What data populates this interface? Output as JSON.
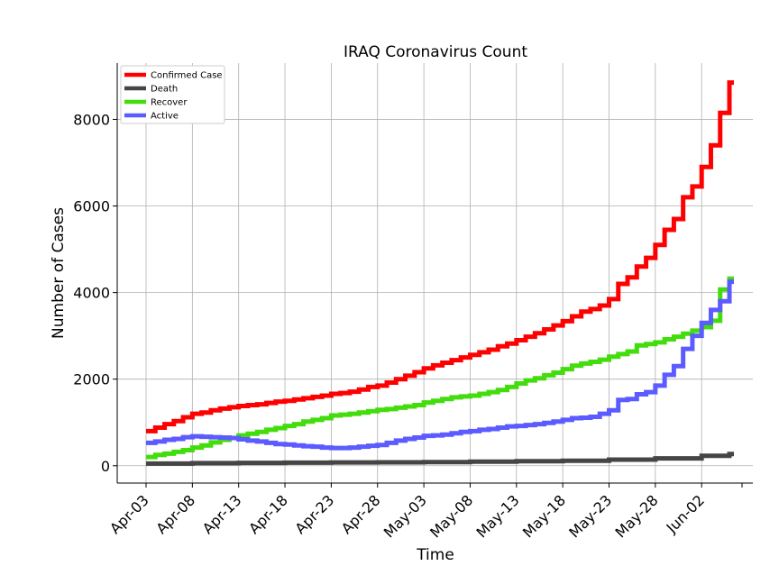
{
  "chart_data": {
    "type": "line",
    "title": "IRAQ Coronavirus Count",
    "xlabel": "Time",
    "ylabel": "Number of Cases",
    "ylim": [
      -400,
      9300
    ],
    "x_ticks": [
      "Apr-03",
      "Apr-08",
      "Apr-13",
      "Apr-18",
      "Apr-23",
      "Apr-28",
      "May-03",
      "May-08",
      "May-13",
      "May-18",
      "May-23",
      "May-28",
      "Jun-02"
    ],
    "y_ticks": [
      0,
      2000,
      4000,
      6000,
      8000
    ],
    "grid": true,
    "legend_position": "top-left",
    "series": [
      {
        "name": "Confirmed Case",
        "color": "#ff0000",
        "x": [
          "Apr-03",
          "Apr-04",
          "Apr-05",
          "Apr-06",
          "Apr-07",
          "Apr-08",
          "Apr-09",
          "Apr-10",
          "Apr-11",
          "Apr-12",
          "Apr-13",
          "Apr-14",
          "Apr-15",
          "Apr-16",
          "Apr-17",
          "Apr-18",
          "Apr-19",
          "Apr-20",
          "Apr-21",
          "Apr-22",
          "Apr-23",
          "Apr-24",
          "Apr-25",
          "Apr-26",
          "Apr-27",
          "Apr-28",
          "Apr-29",
          "Apr-30",
          "May-01",
          "May-02",
          "May-03",
          "May-04",
          "May-05",
          "May-06",
          "May-07",
          "May-08",
          "May-09",
          "May-10",
          "May-11",
          "May-12",
          "May-13",
          "May-14",
          "May-15",
          "May-16",
          "May-17",
          "May-18",
          "May-19",
          "May-20",
          "May-21",
          "May-22",
          "May-23",
          "May-24",
          "May-25",
          "May-26",
          "May-27",
          "May-28",
          "May-29",
          "May-30",
          "May-31",
          "Jun-01",
          "Jun-02",
          "Jun-03",
          "Jun-04",
          "Jun-05"
        ],
        "values": [
          800,
          880,
          960,
          1030,
          1120,
          1200,
          1230,
          1280,
          1320,
          1350,
          1380,
          1400,
          1420,
          1450,
          1480,
          1500,
          1530,
          1560,
          1590,
          1620,
          1660,
          1680,
          1710,
          1760,
          1820,
          1850,
          1920,
          2000,
          2080,
          2160,
          2250,
          2320,
          2380,
          2440,
          2500,
          2560,
          2620,
          2680,
          2760,
          2820,
          2900,
          2980,
          3060,
          3150,
          3240,
          3340,
          3450,
          3560,
          3620,
          3700,
          3850,
          4200,
          4350,
          4600,
          4800,
          5100,
          5450,
          5700,
          6200,
          6450,
          6900,
          7400,
          8150,
          8850
        ]
      },
      {
        "name": "Death",
        "color": "#454545",
        "x": [
          "Apr-03",
          "Apr-08",
          "Apr-13",
          "Apr-18",
          "Apr-23",
          "Apr-28",
          "May-03",
          "May-08",
          "May-13",
          "May-18",
          "May-23",
          "May-28",
          "Jun-02",
          "Jun-05"
        ],
        "values": [
          50,
          60,
          65,
          70,
          75,
          80,
          85,
          95,
          105,
          115,
          140,
          170,
          230,
          270
        ]
      },
      {
        "name": "Recover",
        "color": "#43dc0c",
        "x": [
          "Apr-03",
          "Apr-04",
          "Apr-05",
          "Apr-06",
          "Apr-07",
          "Apr-08",
          "Apr-09",
          "Apr-10",
          "Apr-11",
          "Apr-12",
          "Apr-13",
          "Apr-14",
          "Apr-15",
          "Apr-16",
          "Apr-17",
          "Apr-18",
          "Apr-19",
          "Apr-20",
          "Apr-21",
          "Apr-22",
          "Apr-23",
          "Apr-24",
          "Apr-25",
          "Apr-26",
          "Apr-27",
          "Apr-28",
          "Apr-29",
          "Apr-30",
          "May-01",
          "May-02",
          "May-03",
          "May-04",
          "May-05",
          "May-06",
          "May-07",
          "May-08",
          "May-09",
          "May-10",
          "May-11",
          "May-12",
          "May-13",
          "May-14",
          "May-15",
          "May-16",
          "May-17",
          "May-18",
          "May-19",
          "May-20",
          "May-21",
          "May-22",
          "May-23",
          "May-24",
          "May-25",
          "May-26",
          "May-27",
          "May-28",
          "May-29",
          "May-30",
          "May-31",
          "Jun-01",
          "Jun-02",
          "Jun-03",
          "Jun-04",
          "Jun-05"
        ],
        "values": [
          200,
          250,
          280,
          320,
          360,
          420,
          470,
          540,
          600,
          640,
          700,
          740,
          780,
          830,
          870,
          920,
          960,
          1020,
          1060,
          1100,
          1160,
          1180,
          1200,
          1230,
          1260,
          1290,
          1310,
          1340,
          1370,
          1400,
          1460,
          1500,
          1540,
          1580,
          1600,
          1620,
          1660,
          1700,
          1750,
          1820,
          1900,
          1970,
          2020,
          2090,
          2150,
          2230,
          2310,
          2360,
          2400,
          2450,
          2520,
          2580,
          2640,
          2780,
          2810,
          2850,
          2920,
          2980,
          3050,
          3120,
          3200,
          3350,
          4070,
          4320
        ]
      },
      {
        "name": "Active",
        "color": "#5b5bff",
        "x": [
          "Apr-03",
          "Apr-04",
          "Apr-05",
          "Apr-06",
          "Apr-07",
          "Apr-08",
          "Apr-09",
          "Apr-10",
          "Apr-11",
          "Apr-12",
          "Apr-13",
          "Apr-14",
          "Apr-15",
          "Apr-16",
          "Apr-17",
          "Apr-18",
          "Apr-19",
          "Apr-20",
          "Apr-21",
          "Apr-22",
          "Apr-23",
          "Apr-24",
          "Apr-25",
          "Apr-26",
          "Apr-27",
          "Apr-28",
          "Apr-29",
          "Apr-30",
          "May-01",
          "May-02",
          "May-03",
          "May-04",
          "May-05",
          "May-06",
          "May-07",
          "May-08",
          "May-09",
          "May-10",
          "May-11",
          "May-12",
          "May-13",
          "May-14",
          "May-15",
          "May-16",
          "May-17",
          "May-18",
          "May-19",
          "May-20",
          "May-21",
          "May-22",
          "May-23",
          "May-24",
          "May-25",
          "May-26",
          "May-27",
          "May-28",
          "May-29",
          "May-30",
          "May-31",
          "Jun-01",
          "Jun-02",
          "Jun-03",
          "Jun-04",
          "Jun-05"
        ],
        "values": [
          530,
          560,
          600,
          620,
          660,
          680,
          670,
          660,
          650,
          640,
          610,
          580,
          560,
          530,
          500,
          490,
          470,
          450,
          440,
          420,
          410,
          410,
          420,
          440,
          460,
          480,
          530,
          580,
          620,
          650,
          690,
          700,
          720,
          750,
          780,
          800,
          830,
          850,
          880,
          910,
          920,
          940,
          960,
          990,
          1020,
          1060,
          1100,
          1110,
          1130,
          1200,
          1280,
          1520,
          1540,
          1650,
          1700,
          1850,
          2100,
          2300,
          2700,
          3000,
          3300,
          3600,
          3800,
          4250
        ]
      }
    ]
  }
}
